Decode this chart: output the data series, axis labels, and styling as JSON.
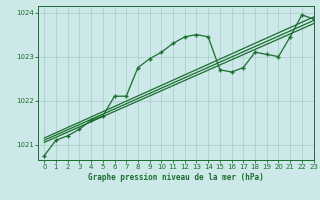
{
  "title": "Graphe pression niveau de la mer (hPa)",
  "bg_color": "#cce8e8",
  "grid_color": "#aacccc",
  "line_color": "#1a6e2e",
  "xlim": [
    -0.5,
    23
  ],
  "ylim": [
    1020.65,
    1024.15
  ],
  "yticks": [
    1021,
    1022,
    1023,
    1024
  ],
  "xticks": [
    0,
    1,
    2,
    3,
    4,
    5,
    6,
    7,
    8,
    9,
    10,
    11,
    12,
    13,
    14,
    15,
    16,
    17,
    18,
    19,
    20,
    21,
    22,
    23
  ],
  "series1_x": [
    0,
    1,
    2,
    3,
    4,
    5,
    6,
    7,
    8,
    9,
    10,
    11,
    12,
    13,
    14,
    15,
    16,
    17,
    18,
    19,
    20,
    21,
    22,
    23
  ],
  "series1_y": [
    1020.75,
    1021.1,
    1021.2,
    1021.35,
    1021.55,
    1021.65,
    1022.1,
    1022.1,
    1022.75,
    1022.95,
    1023.1,
    1023.3,
    1023.45,
    1023.5,
    1023.45,
    1022.7,
    1022.65,
    1022.75,
    1023.1,
    1023.05,
    1023.0,
    1023.45,
    1023.95,
    1023.85
  ],
  "series2_x": [
    0,
    23
  ],
  "series2_y": [
    1021.05,
    1023.75
  ],
  "series3_x": [
    0,
    23
  ],
  "series3_y": [
    1021.1,
    1023.82
  ],
  "series4_x": [
    0,
    23
  ],
  "series4_y": [
    1021.15,
    1023.9
  ]
}
